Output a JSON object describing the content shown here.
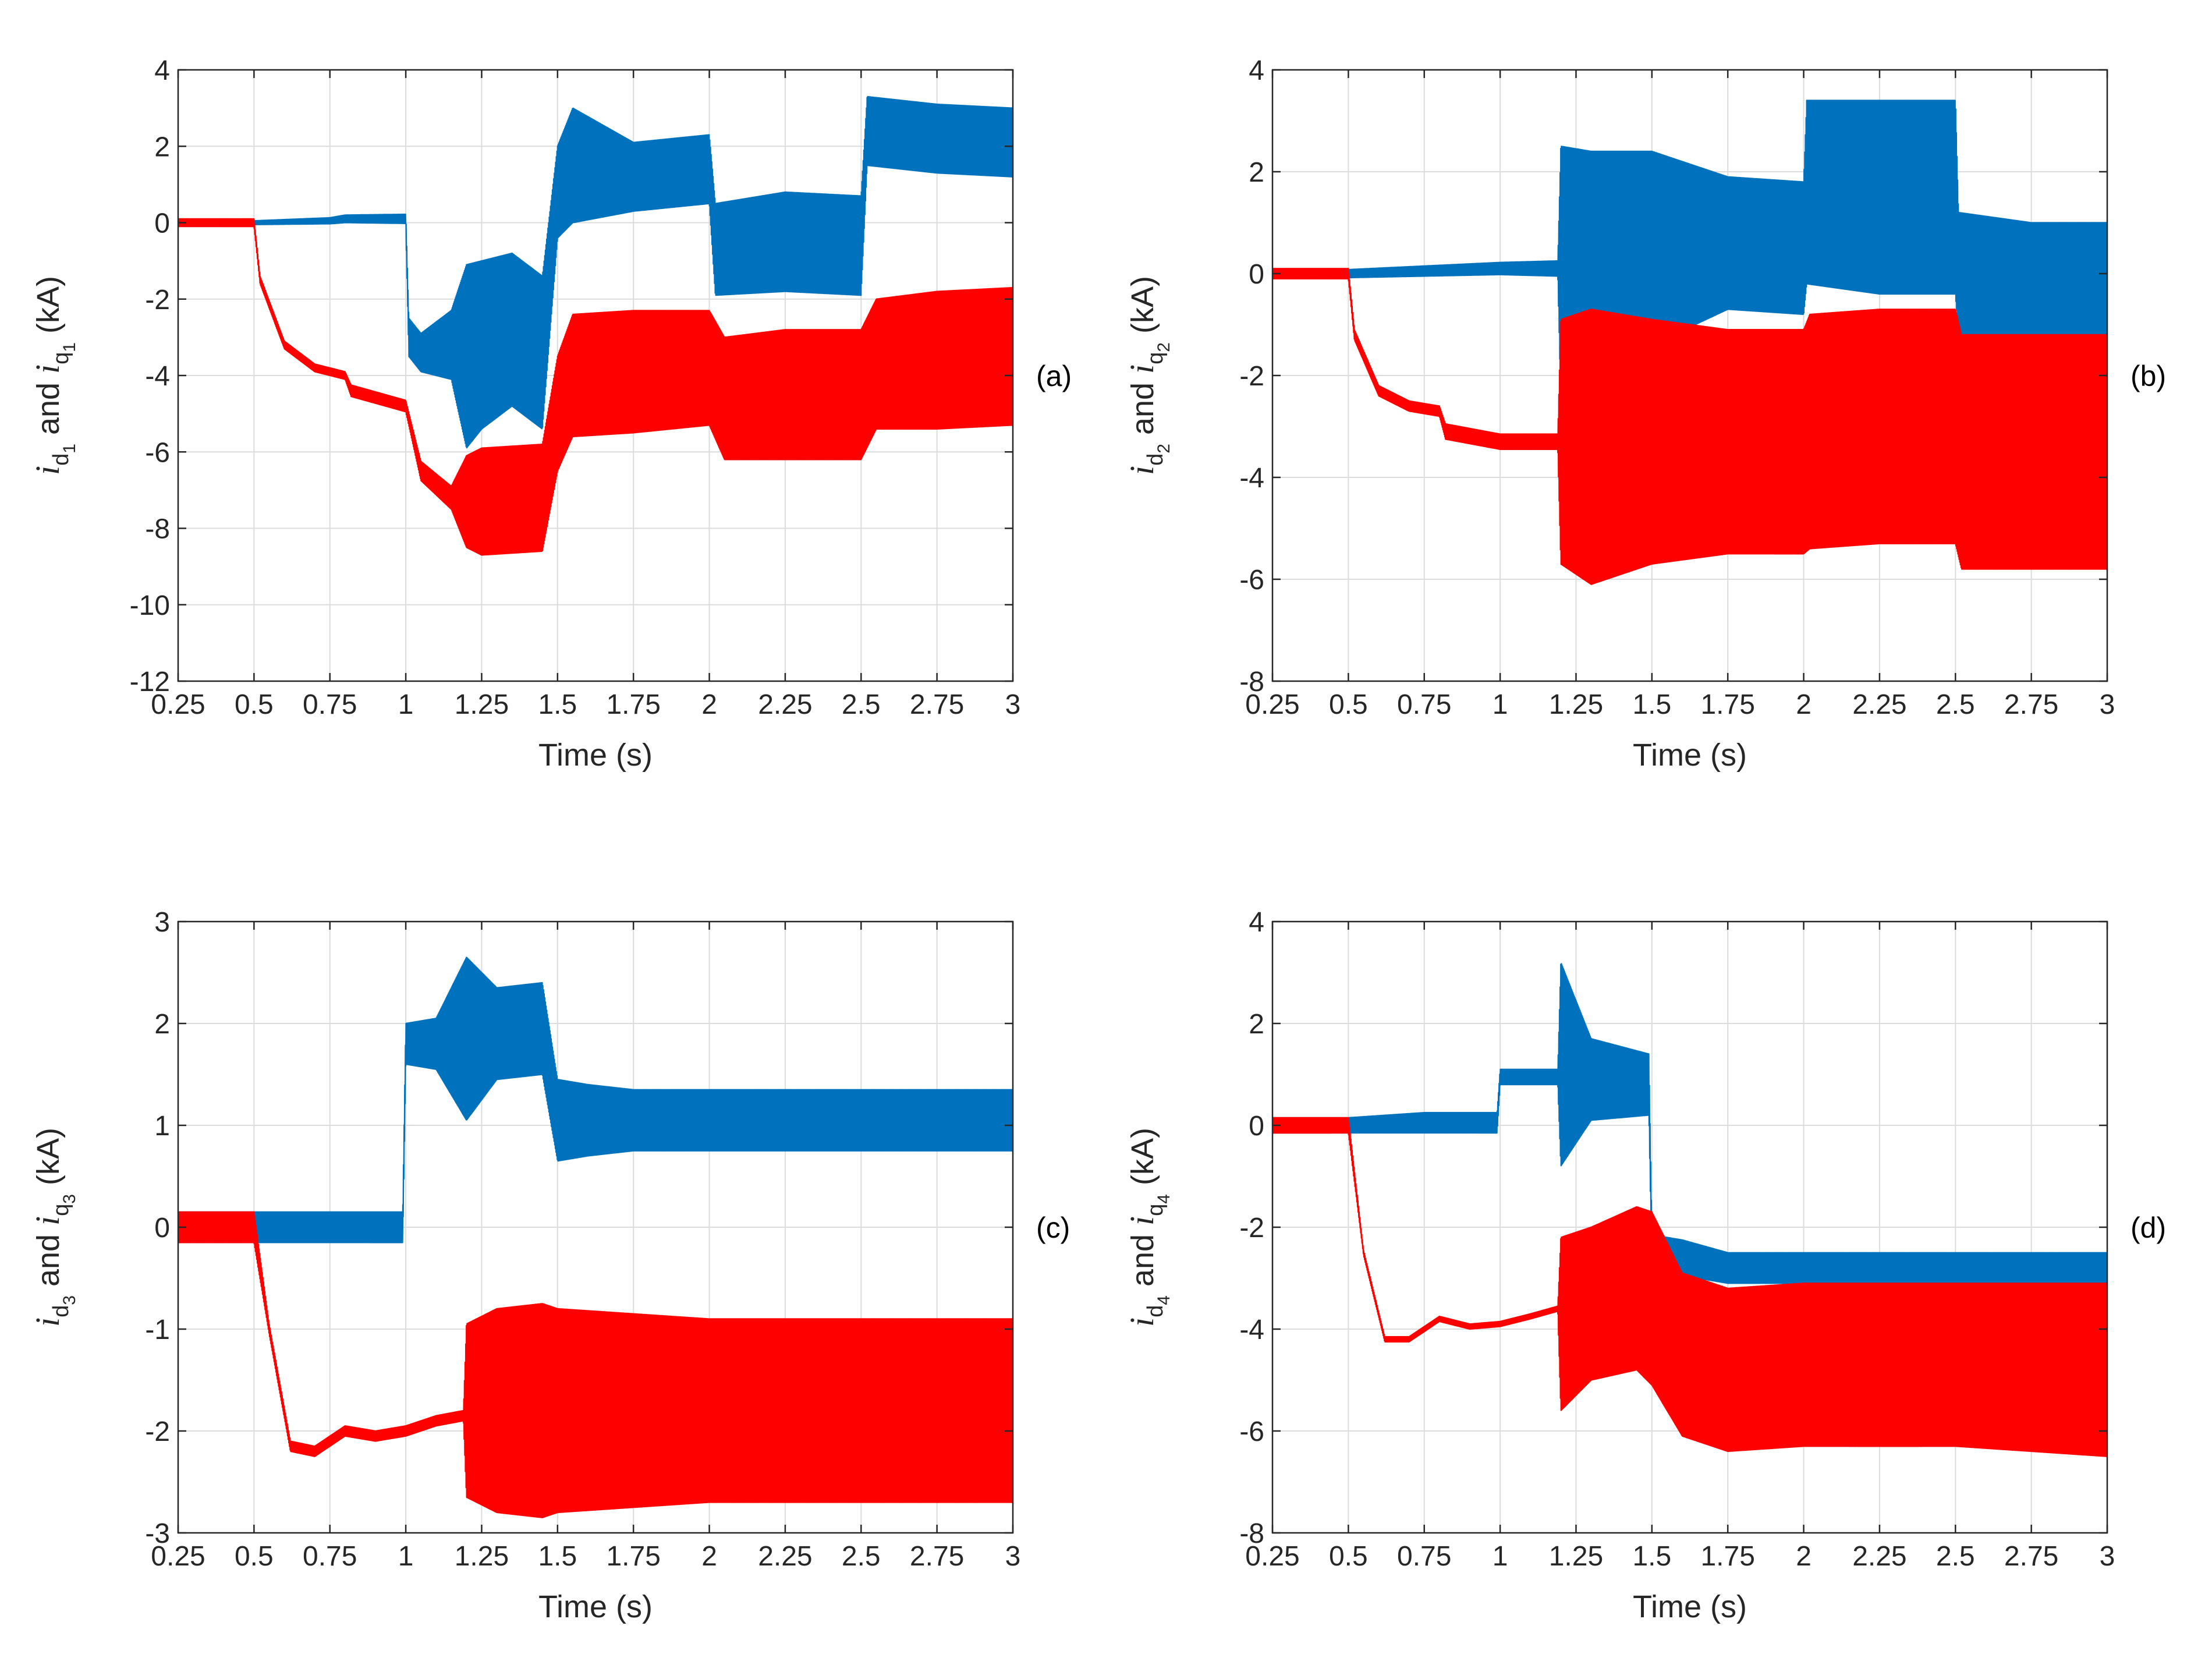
{
  "colors": {
    "id_series": "#ff0000",
    "iq_series": "#0072bd",
    "grid": "#dcdcdc",
    "axis": "#262626"
  },
  "chart_data": [
    {
      "type": "line",
      "panel_label": "(a)",
      "xlabel": "Time (s)",
      "ylabel": {
        "i1": "i",
        "d": "d",
        "n": "1",
        "and": "and",
        "i2": "i",
        "q": "q",
        "unit": "(kA)"
      },
      "xlim": [
        0.25,
        3
      ],
      "ylim": [
        -12,
        4
      ],
      "xticks": [
        0.25,
        0.5,
        0.75,
        1,
        1.25,
        1.5,
        1.75,
        2,
        2.25,
        2.5,
        2.75,
        3
      ],
      "xtick_labels": [
        "0.25",
        "0.5",
        "0.75",
        "1",
        "1.25",
        "1.5",
        "1.75",
        "2",
        "2.25",
        "2.5",
        "2.75",
        "3"
      ],
      "yticks": [
        -12,
        -10,
        -8,
        -6,
        -4,
        -2,
        0,
        2,
        4
      ],
      "ytick_labels": [
        "-12",
        "-10",
        "-8",
        "-6",
        "-4",
        "-2",
        "0",
        "2",
        "4"
      ],
      "grid": true,
      "series": [
        {
          "name": "iq1",
          "color": "#0072bd",
          "x": [
            0.25,
            0.5,
            0.75,
            0.8,
            1.0,
            1.01,
            1.05,
            1.15,
            1.2,
            1.25,
            1.35,
            1.45,
            1.5,
            1.55,
            1.75,
            2.0,
            2.02,
            2.25,
            2.5,
            2.52,
            2.75,
            3.0
          ],
          "values": [
            0.0,
            0.0,
            0.05,
            0.1,
            0.1,
            -3.0,
            -3.4,
            -3.2,
            -3.5,
            -3.2,
            -2.8,
            -3.4,
            0.8,
            1.5,
            1.2,
            1.4,
            -0.7,
            -0.5,
            -0.6,
            2.4,
            2.2,
            2.1
          ],
          "amp": [
            0.05,
            0.05,
            0.08,
            0.1,
            0.12,
            0.5,
            0.5,
            0.9,
            2.4,
            2.2,
            2.0,
            2.0,
            1.2,
            1.5,
            0.9,
            0.9,
            1.2,
            1.3,
            1.3,
            0.9,
            0.9,
            0.9
          ]
        },
        {
          "name": "id1",
          "color": "#ff0000",
          "x": [
            0.25,
            0.5,
            0.52,
            0.6,
            0.7,
            0.8,
            0.82,
            1.0,
            1.05,
            1.15,
            1.2,
            1.25,
            1.45,
            1.5,
            1.55,
            1.75,
            2.0,
            2.05,
            2.25,
            2.5,
            2.55,
            2.75,
            3.0
          ],
          "values": [
            0.0,
            0.0,
            -1.5,
            -3.2,
            -3.8,
            -4.0,
            -4.4,
            -4.8,
            -6.5,
            -7.2,
            -7.3,
            -7.3,
            -7.2,
            -5.0,
            -4.0,
            -3.9,
            -3.8,
            -4.6,
            -4.5,
            -4.5,
            -3.7,
            -3.6,
            -3.5
          ],
          "amp": [
            0.1,
            0.1,
            0.1,
            0.1,
            0.1,
            0.1,
            0.15,
            0.15,
            0.25,
            0.3,
            1.2,
            1.4,
            1.4,
            1.5,
            1.6,
            1.6,
            1.5,
            1.6,
            1.7,
            1.7,
            1.7,
            1.8,
            1.8
          ]
        }
      ]
    },
    {
      "type": "line",
      "panel_label": "(b)",
      "xlabel": "Time (s)",
      "ylabel": {
        "i1": "i",
        "d": "d",
        "n": "2",
        "and": "and",
        "i2": "i",
        "q": "q",
        "unit": "(kA)"
      },
      "xlim": [
        0.25,
        3
      ],
      "ylim": [
        -8,
        4
      ],
      "xticks": [
        0.25,
        0.5,
        0.75,
        1,
        1.25,
        1.5,
        1.75,
        2,
        2.25,
        2.5,
        2.75,
        3
      ],
      "xtick_labels": [
        "0.25",
        "0.5",
        "0.75",
        "1",
        "1.25",
        "1.5",
        "1.75",
        "2",
        "2.25",
        "2.5",
        "2.75",
        "3"
      ],
      "yticks": [
        -8,
        -6,
        -4,
        -2,
        0,
        2,
        4
      ],
      "ytick_labels": [
        "-8",
        "-6",
        "-4",
        "-2",
        "0",
        "2",
        "4"
      ],
      "grid": true,
      "series": [
        {
          "name": "iq2",
          "color": "#0072bd",
          "x": [
            0.25,
            0.5,
            0.75,
            1.0,
            1.19,
            1.2,
            1.3,
            1.5,
            1.75,
            2.0,
            2.01,
            2.25,
            2.5,
            2.51,
            2.75,
            3.0
          ],
          "values": [
            0.0,
            0.0,
            0.05,
            0.1,
            0.1,
            0.0,
            0.2,
            0.5,
            0.6,
            0.5,
            1.6,
            1.5,
            1.5,
            0.0,
            -0.1,
            -0.1
          ],
          "amp": [
            0.08,
            0.08,
            0.1,
            0.12,
            0.15,
            2.5,
            2.2,
            1.9,
            1.3,
            1.3,
            1.8,
            1.9,
            1.9,
            1.2,
            1.1,
            1.1
          ]
        },
        {
          "name": "id2",
          "color": "#ff0000",
          "x": [
            0.25,
            0.5,
            0.52,
            0.6,
            0.7,
            0.8,
            0.82,
            1.0,
            1.19,
            1.2,
            1.3,
            1.5,
            1.75,
            2.0,
            2.02,
            2.25,
            2.5,
            2.52,
            2.75,
            3.0
          ],
          "values": [
            0.0,
            0.0,
            -1.2,
            -2.3,
            -2.6,
            -2.7,
            -3.1,
            -3.3,
            -3.3,
            -3.3,
            -3.4,
            -3.3,
            -3.3,
            -3.3,
            -3.1,
            -3.0,
            -3.0,
            -3.5,
            -3.5,
            -3.5
          ],
          "amp": [
            0.1,
            0.1,
            0.1,
            0.1,
            0.1,
            0.1,
            0.15,
            0.15,
            0.15,
            2.4,
            2.7,
            2.4,
            2.2,
            2.2,
            2.3,
            2.3,
            2.3,
            2.3,
            2.3,
            2.3
          ]
        }
      ]
    },
    {
      "type": "line",
      "panel_label": "(c)",
      "xlabel": "Time (s)",
      "ylabel": {
        "i1": "i",
        "d": "d",
        "n": "3",
        "and": "and",
        "i2": "i",
        "q": "q",
        "unit": "(kA)"
      },
      "xlim": [
        0.25,
        3
      ],
      "ylim": [
        -3,
        3
      ],
      "xticks": [
        0.25,
        0.5,
        0.75,
        1,
        1.25,
        1.5,
        1.75,
        2,
        2.25,
        2.5,
        2.75,
        3
      ],
      "xtick_labels": [
        "0.25",
        "0.5",
        "0.75",
        "1",
        "1.25",
        "1.5",
        "1.75",
        "2",
        "2.25",
        "2.5",
        "2.75",
        "3"
      ],
      "yticks": [
        -3,
        -2,
        -1,
        0,
        1,
        2,
        3
      ],
      "ytick_labels": [
        "-3",
        "-2",
        "-1",
        "0",
        "1",
        "2",
        "3"
      ],
      "grid": true,
      "series": [
        {
          "name": "iq3",
          "color": "#0072bd",
          "x": [
            0.25,
            0.5,
            0.75,
            0.99,
            1.0,
            1.1,
            1.2,
            1.3,
            1.45,
            1.5,
            1.6,
            1.75,
            2.0,
            2.25,
            2.5,
            2.75,
            3.0
          ],
          "values": [
            0.0,
            0.0,
            0.0,
            0.0,
            1.8,
            1.8,
            1.85,
            1.9,
            1.95,
            1.05,
            1.05,
            1.05,
            1.05,
            1.05,
            1.05,
            1.05,
            1.05
          ],
          "amp": [
            0.15,
            0.15,
            0.15,
            0.15,
            0.2,
            0.25,
            0.8,
            0.45,
            0.45,
            0.4,
            0.35,
            0.3,
            0.3,
            0.3,
            0.3,
            0.3,
            0.3
          ]
        },
        {
          "name": "id3",
          "color": "#ff0000",
          "x": [
            0.25,
            0.5,
            0.55,
            0.62,
            0.7,
            0.8,
            0.9,
            1.0,
            1.1,
            1.19,
            1.2,
            1.3,
            1.45,
            1.5,
            1.75,
            2.0,
            2.25,
            2.5,
            2.75,
            3.0
          ],
          "values": [
            0.0,
            0.0,
            -1.0,
            -2.15,
            -2.2,
            -2.0,
            -2.05,
            -2.0,
            -1.9,
            -1.85,
            -1.8,
            -1.8,
            -1.8,
            -1.8,
            -1.8,
            -1.8,
            -1.8,
            -1.8,
            -1.8,
            -1.8
          ],
          "amp": [
            0.15,
            0.15,
            0.05,
            0.05,
            0.05,
            0.05,
            0.05,
            0.05,
            0.05,
            0.05,
            0.85,
            1.0,
            1.05,
            1.0,
            0.95,
            0.9,
            0.9,
            0.9,
            0.9,
            0.9
          ]
        }
      ]
    },
    {
      "type": "line",
      "panel_label": "(d)",
      "xlabel": "Time (s)",
      "ylabel": {
        "i1": "i",
        "d": "d",
        "n": "4",
        "and": "and",
        "i2": "i",
        "q": "q",
        "unit": "(kA)"
      },
      "xlim": [
        0.25,
        3
      ],
      "ylim": [
        -8,
        4
      ],
      "xticks": [
        0.25,
        0.5,
        0.75,
        1,
        1.25,
        1.5,
        1.75,
        2,
        2.25,
        2.5,
        2.75,
        3
      ],
      "xtick_labels": [
        "0.25",
        "0.5",
        "0.75",
        "1",
        "1.25",
        "1.5",
        "1.75",
        "2",
        "2.25",
        "2.5",
        "2.75",
        "3"
      ],
      "yticks": [
        -8,
        -6,
        -4,
        -2,
        0,
        2,
        4
      ],
      "ytick_labels": [
        "-8",
        "-6",
        "-4",
        "-2",
        "0",
        "2",
        "4"
      ],
      "grid": true,
      "series": [
        {
          "name": "iq4",
          "color": "#0072bd",
          "x": [
            0.25,
            0.5,
            0.75,
            0.99,
            1.0,
            1.19,
            1.2,
            1.3,
            1.49,
            1.5,
            1.6,
            1.75,
            2.0,
            2.5,
            3.0
          ],
          "values": [
            0.0,
            0.0,
            0.05,
            0.05,
            0.95,
            0.95,
            1.2,
            0.9,
            0.8,
            -2.5,
            -2.6,
            -2.8,
            -2.8,
            -2.8,
            -2.8
          ],
          "amp": [
            0.15,
            0.15,
            0.2,
            0.2,
            0.15,
            0.15,
            2.0,
            0.8,
            0.6,
            0.35,
            0.35,
            0.3,
            0.3,
            0.3,
            0.3
          ]
        },
        {
          "name": "id4",
          "color": "#ff0000",
          "x": [
            0.25,
            0.5,
            0.55,
            0.62,
            0.7,
            0.8,
            0.9,
            1.0,
            1.1,
            1.19,
            1.2,
            1.3,
            1.45,
            1.5,
            1.6,
            1.75,
            2.0,
            2.5,
            3.0
          ],
          "values": [
            0.0,
            0.0,
            -2.5,
            -4.2,
            -4.2,
            -3.8,
            -3.95,
            -3.9,
            -3.75,
            -3.6,
            -3.9,
            -3.5,
            -3.2,
            -3.4,
            -4.5,
            -4.8,
            -4.7,
            -4.7,
            -4.8
          ],
          "amp": [
            0.15,
            0.15,
            0.05,
            0.05,
            0.05,
            0.05,
            0.05,
            0.05,
            0.05,
            0.05,
            1.7,
            1.5,
            1.6,
            1.7,
            1.6,
            1.6,
            1.6,
            1.6,
            1.7
          ]
        }
      ]
    }
  ]
}
